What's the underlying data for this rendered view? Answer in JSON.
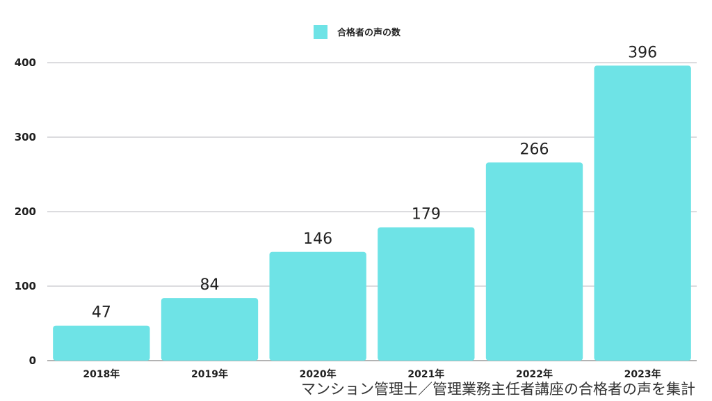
{
  "chart_data": {
    "type": "bar",
    "categories": [
      "2018年",
      "2019年",
      "2020年",
      "2021年",
      "2022年",
      "2023年"
    ],
    "series": [
      {
        "name": "合格者の声の数",
        "values": [
          47,
          84,
          146,
          179,
          266,
          396
        ]
      }
    ],
    "ylim": [
      0,
      400
    ],
    "yticks": [
      0,
      100,
      200,
      300,
      400
    ],
    "grid": true,
    "legend": "top-center",
    "data_labels": true,
    "caption": "マンション管理士／管理業務主任者講座の合格者の声を集計"
  },
  "colors": {
    "bar": "#6ee3e6",
    "grid": "#c8c8cc",
    "axis": "#9a9a9a"
  }
}
